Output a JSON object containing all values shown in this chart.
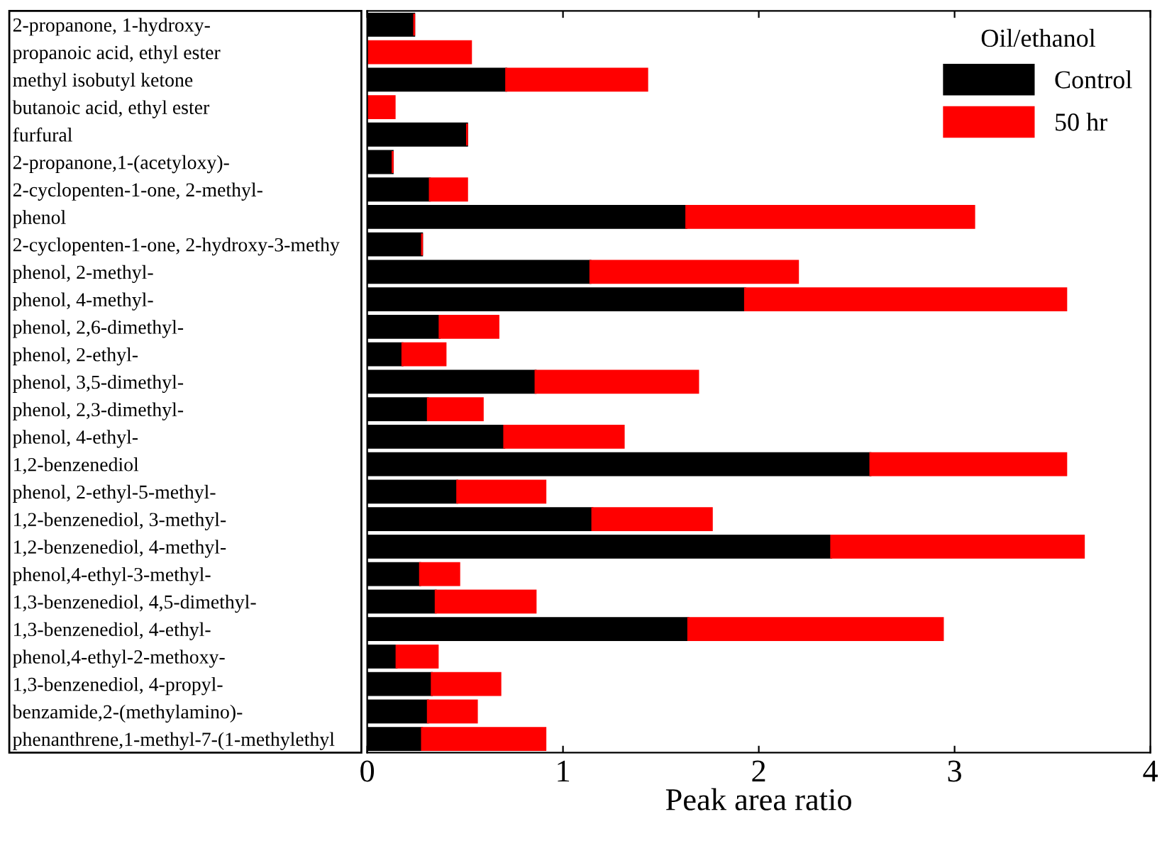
{
  "chart_data": {
    "type": "bar",
    "orientation": "horizontal",
    "stacked": true,
    "categories": [
      "2-propanone, 1-hydroxy-",
      "propanoic acid, ethyl ester",
      "methyl isobutyl ketone",
      "butanoic acid, ethyl ester",
      "furfural",
      "2-propanone,1-(acetyloxy)-",
      "2-cyclopenten-1-one, 2-methyl-",
      "phenol",
      "2-cyclopenten-1-one, 2-hydroxy-3-methy",
      "phenol, 2-methyl-",
      "phenol, 4-methyl-",
      "phenol, 2,6-dimethyl-",
      "phenol, 2-ethyl-",
      "phenol, 3,5-dimethyl-",
      "phenol, 2,3-dimethyl-",
      "phenol, 4-ethyl-",
      "1,2-benzenediol",
      "phenol, 2-ethyl-5-methyl-",
      "1,2-benzenediol, 3-methyl-",
      "1,2-benzenediol, 4-methyl-",
      "phenol,4-ethyl-3-methyl-",
      "1,3-benzenediol, 4,5-dimethyl-",
      "1,3-benzenediol, 4-ethyl-",
      "phenol,4-ethyl-2-methoxy-",
      "1,3-benzenediol, 4-propyl-",
      "benzamide,2-(methylamino)-",
      "phenanthrene,1-methyl-7-(1-methylethyl"
    ],
    "series": [
      {
        "name": "Control",
        "color": "#000000",
        "values": [
          0.24,
          0,
          0.71,
          0,
          0.51,
          0.13,
          0.32,
          1.63,
          0.28,
          1.14,
          1.93,
          0.37,
          0.18,
          0.86,
          0.31,
          0.7,
          2.57,
          0.46,
          1.15,
          2.37,
          0.27,
          0.35,
          1.64,
          0.15,
          0.33,
          0.31,
          0.28
        ]
      },
      {
        "name": "50 hr",
        "color": "#ff0000",
        "values": [
          0,
          0.53,
          0.72,
          0.14,
          0,
          0,
          0.19,
          1.47,
          0,
          1.06,
          1.64,
          0.3,
          0.22,
          0.83,
          0.28,
          0.61,
          1.0,
          0.45,
          0.61,
          1.29,
          0.2,
          0.51,
          1.3,
          0.21,
          0.35,
          0.25,
          0.63
        ]
      }
    ],
    "xlabel": "Peak area ratio",
    "xlim": [
      0,
      4
    ],
    "xticks": [
      0,
      1,
      2,
      3,
      4
    ],
    "legend": "top right",
    "legend_title": "Oil/ethanol",
    "grid": false
  }
}
